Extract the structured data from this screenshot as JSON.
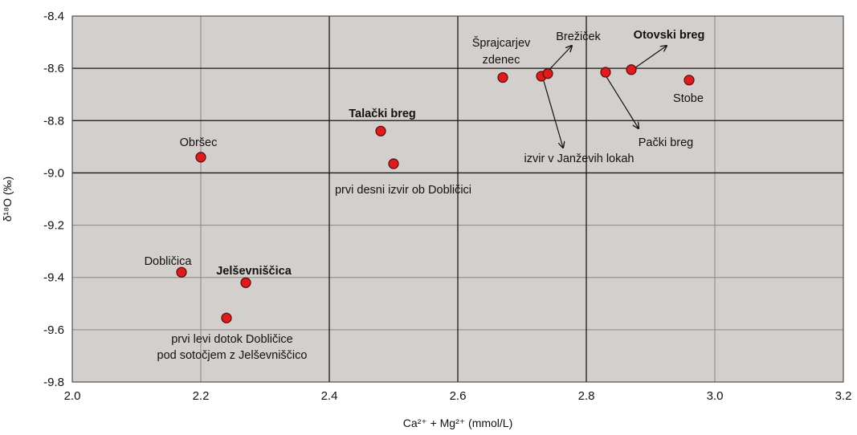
{
  "chart_data": {
    "type": "scatter",
    "xlabel": "Ca²⁺ + Mg²⁺ (mmol/L)",
    "ylabel": "δ¹⁸O (‰)",
    "xlim": [
      2.0,
      3.2
    ],
    "ylim": [
      -9.8,
      -8.4
    ],
    "xticks": [
      "2.0",
      "2.2",
      "2.4",
      "2.6",
      "2.8",
      "3.0",
      "3.2"
    ],
    "yticks": [
      "-8.4",
      "-8.6",
      "-8.8",
      "-9.0",
      "-9.2",
      "-9.4",
      "-9.6",
      "-9.8"
    ],
    "major_grid_x": [
      2.4,
      2.6,
      2.8
    ],
    "major_grid_y": [
      -8.6,
      -8.8,
      -9.0
    ],
    "grid": true,
    "colors": {
      "plot_background": "#d3cfcc",
      "point_fill": "#e11b1b",
      "point_stroke": "#5a0a0a",
      "grid": "#8a8683",
      "major_grid": "#1a1a1a"
    },
    "points": [
      {
        "x": 2.2,
        "y": -8.94,
        "label": "Obršec"
      },
      {
        "x": 2.17,
        "y": -9.38,
        "label": "Dobličica"
      },
      {
        "x": 2.27,
        "y": -9.42,
        "label": "Jelševniščica"
      },
      {
        "x": 2.24,
        "y": -9.555,
        "label": "prvi levi dotok Dobličice pod sotočjem z Jelševniščico"
      },
      {
        "x": 2.48,
        "y": -8.84,
        "label": "Talački breg"
      },
      {
        "x": 2.5,
        "y": -8.965,
        "label": "prvi desni izvir ob Dobličici"
      },
      {
        "x": 2.67,
        "y": -8.635,
        "label": "Šprajcarjev zdenec"
      },
      {
        "x": 2.73,
        "y": -8.63,
        "label": "izvir v Janževih lokah"
      },
      {
        "x": 2.74,
        "y": -8.62,
        "label": "Brežiček"
      },
      {
        "x": 2.83,
        "y": -8.615,
        "label": "Pački breg"
      },
      {
        "x": 2.87,
        "y": -8.605,
        "label": "Otovski breg"
      },
      {
        "x": 2.96,
        "y": -8.645,
        "label": "Stobe"
      }
    ],
    "annotations": [
      {
        "text": "Obršec",
        "bold": false
      },
      {
        "text": "Dobličica",
        "bold": false
      },
      {
        "text": "Jelševniščica",
        "bold": true
      },
      {
        "text": "prvi levi dotok Dobličice",
        "bold": false
      },
      {
        "text": "pod sotočjem z Jelševniščico",
        "bold": false
      },
      {
        "text": "Talački breg",
        "bold": true
      },
      {
        "text": "prvi desni izvir ob Dobličici",
        "bold": false
      },
      {
        "text": "Šprajcarjev",
        "bold": false
      },
      {
        "text": "zdenec",
        "bold": false
      },
      {
        "text": "Brežiček",
        "bold": false
      },
      {
        "text": "Otovski breg",
        "bold": true
      },
      {
        "text": "Stobe",
        "bold": false
      },
      {
        "text": "Pački breg",
        "bold": false
      },
      {
        "text": "izvir v Janževih lokah",
        "bold": false
      }
    ]
  }
}
